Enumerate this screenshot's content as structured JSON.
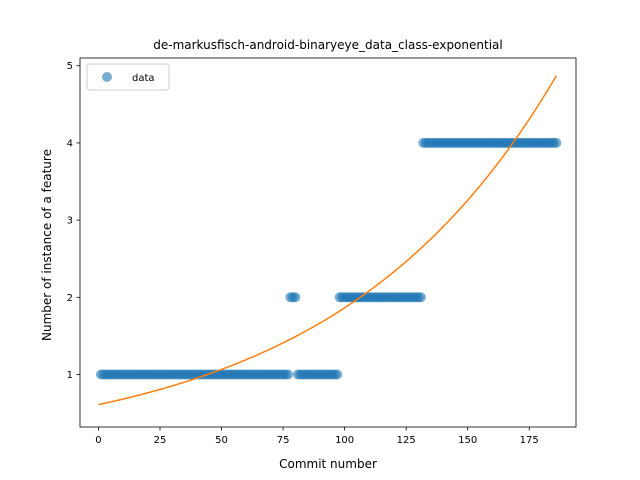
{
  "chart_data": {
    "type": "scatter",
    "title": "de-markusfisch-android-binaryeye_data_class-exponential",
    "xlabel": "Commit number",
    "ylabel": "Number of instance of a feature",
    "xlim": [
      -7.5,
      194
    ],
    "ylim": [
      0.32,
      5.1
    ],
    "xticks": [
      0,
      25,
      50,
      75,
      100,
      125,
      150,
      175
    ],
    "yticks": [
      1,
      2,
      3,
      4,
      5
    ],
    "grid": false,
    "legend": {
      "position": "top-left",
      "entries": [
        "data"
      ]
    },
    "colors": {
      "data": "#1f77b4",
      "fit": "#ff7f0e"
    },
    "series": [
      {
        "name": "data",
        "kind": "points",
        "segments": [
          {
            "x_start": 1,
            "x_end": 77,
            "y": 1
          },
          {
            "x_start": 78,
            "x_end": 80,
            "y": 2
          },
          {
            "x_start": 81,
            "x_end": 97,
            "y": 1
          },
          {
            "x_start": 98,
            "x_end": 131,
            "y": 2
          },
          {
            "x_start": 132,
            "x_end": 186,
            "y": 4
          }
        ]
      },
      {
        "kind": "exponential-fit",
        "x_range": [
          0,
          186
        ],
        "y_at_start": 0.61,
        "y_at_end": 4.87
      }
    ]
  }
}
